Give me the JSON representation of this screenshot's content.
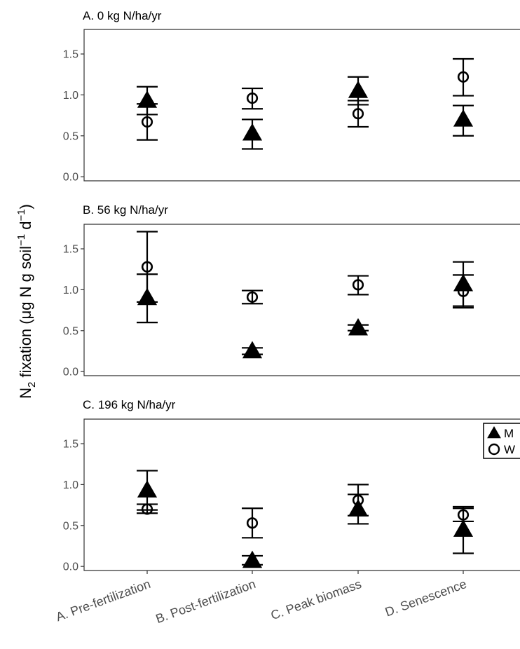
{
  "chart_data": {
    "type": "scatter",
    "y_title": {
      "base": "N",
      "base_sub": "2",
      "text1": " fixation (μg N g soil",
      "sup1": "−1",
      "text2": " d",
      "sup2": "−1",
      "text3": ")"
    },
    "categories": [
      "A. Pre-fertilization",
      "B. Post-fertilization",
      "C. Peak biomass",
      "D. Senescence"
    ],
    "ylim": [
      -0.05,
      1.8
    ],
    "yticks": [
      "0.0",
      "0.5",
      "1.0",
      "1.5"
    ],
    "legend": {
      "placement": "right",
      "entries": [
        {
          "label": "M",
          "marker": "filled-triangle"
        },
        {
          "label": "W",
          "marker": "open-circle"
        }
      ]
    },
    "panels": [
      {
        "title": "A. 0 kg N/ha/yr",
        "series": [
          {
            "name": "M",
            "values": [
              0.93,
              0.53,
              1.05,
              0.7
            ],
            "lower": [
              0.76,
              0.34,
              0.88,
              0.5
            ],
            "upper": [
              1.1,
              0.7,
              1.22,
              0.87
            ]
          },
          {
            "name": "W",
            "values": [
              0.67,
              0.96,
              0.77,
              1.22
            ],
            "lower": [
              0.45,
              0.83,
              0.61,
              0.99
            ],
            "upper": [
              0.89,
              1.08,
              0.93,
              1.44
            ]
          }
        ]
      },
      {
        "title": "B. 56 kg N/ha/yr",
        "series": [
          {
            "name": "M",
            "values": [
              0.9,
              0.25,
              0.53,
              1.07
            ],
            "lower": [
              0.6,
              0.21,
              0.5,
              0.8
            ],
            "upper": [
              1.19,
              0.29,
              0.57,
              1.34
            ]
          },
          {
            "name": "W",
            "values": [
              1.28,
              0.91,
              1.06,
              0.98
            ],
            "lower": [
              0.85,
              0.83,
              0.94,
              0.78
            ],
            "upper": [
              1.71,
              0.99,
              1.17,
              1.18
            ]
          }
        ]
      },
      {
        "title": "C. 196 kg N/ha/yr",
        "series": [
          {
            "name": "M",
            "values": [
              0.93,
              0.07,
              0.7,
              0.45
            ],
            "lower": [
              0.69,
              0.02,
              0.52,
              0.16
            ],
            "upper": [
              1.17,
              0.13,
              0.88,
              0.73
            ]
          },
          {
            "name": "W",
            "values": [
              0.7,
              0.53,
              0.81,
              0.63
            ],
            "lower": [
              0.65,
              0.35,
              0.62,
              0.55
            ],
            "upper": [
              0.76,
              0.71,
              1.0,
              0.71
            ]
          }
        ]
      }
    ]
  }
}
